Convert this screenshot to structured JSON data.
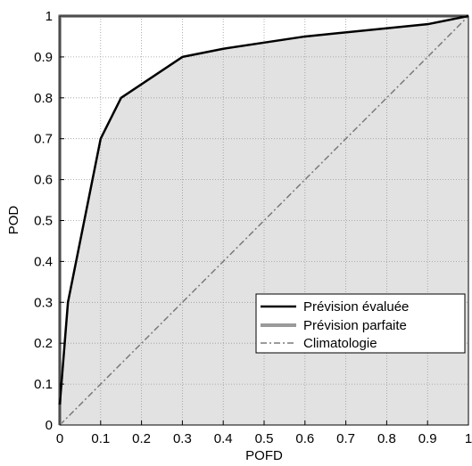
{
  "chart_data": {
    "type": "line",
    "title": "",
    "xlabel": "POFD",
    "ylabel": "POD",
    "xlim": [
      0,
      1
    ],
    "ylim": [
      0,
      1
    ],
    "x_ticks": [
      "0",
      "0.1",
      "0.2",
      "0.3",
      "0.4",
      "0.5",
      "0.6",
      "0.7",
      "0.8",
      "0.9",
      "1"
    ],
    "y_ticks": [
      "0",
      "0.1",
      "0.2",
      "0.3",
      "0.4",
      "0.5",
      "0.6",
      "0.7",
      "0.8",
      "0.9",
      "1"
    ],
    "grid": true,
    "legend_position": "bottom-right",
    "shaded_area": "under-evaluated-curve",
    "colors": {
      "evaluated": "#000000",
      "perfect": "#9a9a9a",
      "climatology": "#7a7a7a",
      "fill": "#e2e2e2",
      "grid": "#9a9a9a"
    },
    "series": [
      {
        "name": "Prévision évaluée",
        "style": "solid",
        "x": [
          0,
          0.02,
          0.1,
          0.15,
          0.3,
          0.4,
          0.6,
          0.9,
          1.0
        ],
        "y": [
          0.05,
          0.3,
          0.7,
          0.8,
          0.9,
          0.92,
          0.95,
          0.98,
          1.0
        ]
      },
      {
        "name": "Prévision parfaite",
        "style": "solid-thick",
        "x": [
          0,
          0,
          1
        ],
        "y": [
          0,
          1,
          1
        ]
      },
      {
        "name": "Climatologie",
        "style": "dash-dot",
        "x": [
          0,
          1
        ],
        "y": [
          0,
          1
        ]
      }
    ]
  }
}
